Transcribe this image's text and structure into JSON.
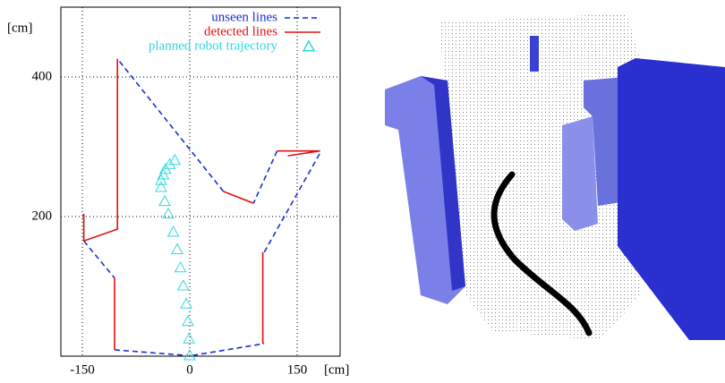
{
  "chart_data": {
    "type": "line",
    "x_label": "[cm]",
    "y_label": "[cm]",
    "xlim": [
      -180,
      210
    ],
    "ylim": [
      0,
      500
    ],
    "xticks": [
      -150,
      0,
      150
    ],
    "yticks": [
      200,
      400
    ],
    "grid": true,
    "legend": "upper right",
    "series": [
      {
        "name": "unseen lines",
        "color": "#1a2fd0",
        "style": "dashed",
        "x": [
          -148,
          -105,
          null,
          -105,
          -3,
          null,
          4,
          104,
          null,
          104,
          182,
          null,
          122,
          89,
          null,
          47,
          -101
        ],
        "values": [
          165,
          112,
          null,
          9,
          1,
          null,
          1,
          18,
          null,
          149,
          291,
          null,
          294,
          219,
          null,
          236,
          426
        ]
      },
      {
        "name": "detected lines",
        "color": "#e01010",
        "style": "solid",
        "x": [
          -101,
          -101,
          -148,
          null,
          -148,
          -148,
          null,
          -105,
          -105,
          null,
          102,
          102,
          null,
          122,
          182,
          137,
          null,
          89,
          47
        ],
        "values": [
          426,
          182,
          165,
          null,
          204,
          165,
          null,
          112,
          9,
          null,
          149,
          18,
          null,
          294,
          294,
          287,
          null,
          219,
          236
        ]
      },
      {
        "name": "planned robot trajectory",
        "color": "#30d8e0",
        "style": "triangles",
        "x": [
          0,
          -1,
          -2.5,
          -5,
          -9,
          -13,
          -17.5,
          -23,
          -30,
          -35,
          -40,
          -40,
          -37,
          -34,
          -28,
          -21
        ],
        "values": [
          1,
          25,
          50,
          75,
          101,
          127,
          153,
          178,
          204,
          222,
          242,
          252,
          260,
          268,
          275,
          281
        ]
      }
    ]
  }
}
